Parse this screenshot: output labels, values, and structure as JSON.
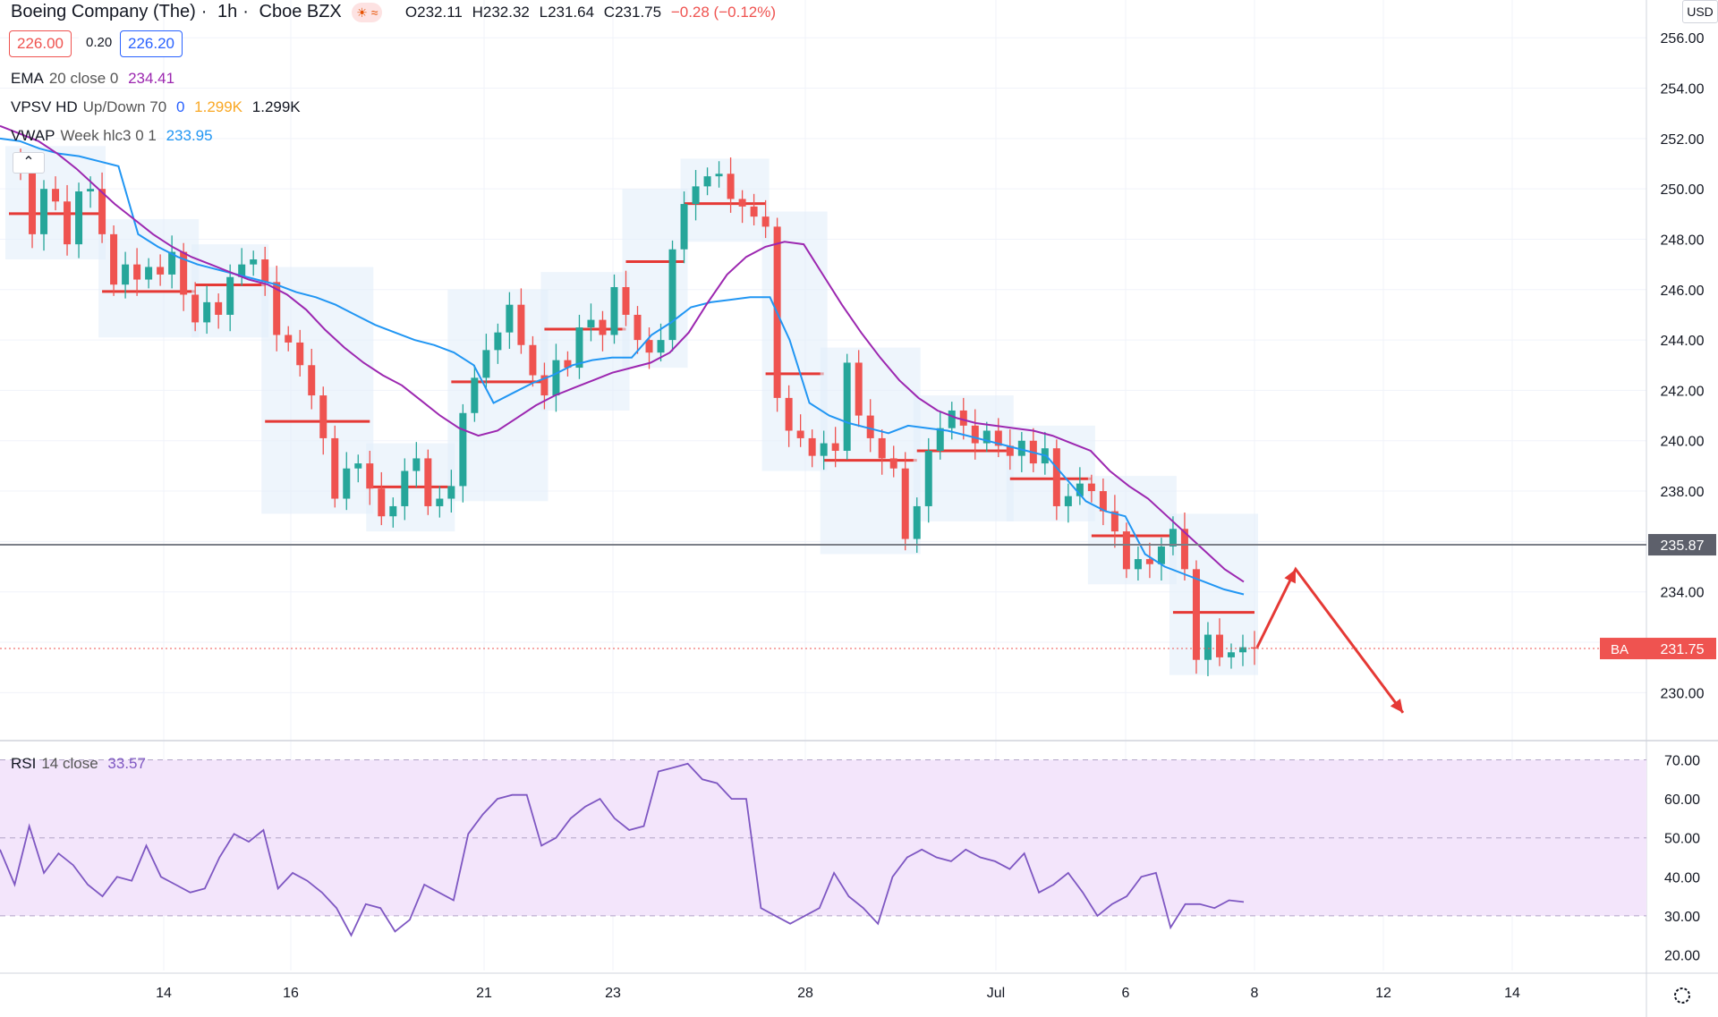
{
  "header": {
    "symbol_name": "Boeing Company (The)",
    "interval": "1h",
    "exchange": "Cboe BZX",
    "ohlc": {
      "o": "O232.11",
      "h": "H232.32",
      "l": "L231.64",
      "c": "C231.75",
      "chg": "−0.28 (−0.12%)"
    },
    "bid": "226.00",
    "spread": "0.20",
    "ask": "226.20",
    "currency": "USD"
  },
  "indicators": {
    "ema": {
      "name": "EMA",
      "params": "20 close 0",
      "value": "234.41",
      "color": "#9c27b0"
    },
    "vpsv": {
      "name": "VPSV HD",
      "params": "Up/Down 70",
      "v1": "0",
      "v2": "1.299K",
      "v3": "1.299K"
    },
    "vwap": {
      "name": "VWAP",
      "params": "Week hlc3 0 1",
      "value": "233.95",
      "color": "#2196f3"
    },
    "rsi": {
      "name": "RSI",
      "params": "14 close",
      "value": "33.57",
      "color": "#7e57c2"
    }
  },
  "chart_data": {
    "type": "candlestick",
    "price_axis": {
      "ticks": [
        "256.00",
        "254.00",
        "252.00",
        "250.00",
        "248.00",
        "246.00",
        "244.00",
        "242.00",
        "240.00",
        "238.00",
        "236.00",
        "234.00",
        "232.00",
        "230.00"
      ],
      "ylim": [
        228.2,
        257.5
      ]
    },
    "rsi_axis": {
      "ticks": [
        "70.00",
        "60.00",
        "50.00",
        "40.00",
        "30.00",
        "20.00"
      ],
      "ylim": [
        16,
        74
      ],
      "overbought": 70,
      "oversold": 30
    },
    "x_labels": [
      "14",
      "16",
      "21",
      "23",
      "28",
      "Jul",
      "6",
      "8",
      "12",
      "14"
    ],
    "horizontal_line": {
      "value": 235.87,
      "label": "235.87"
    },
    "last_price": {
      "symbol": "BA",
      "value": 231.75,
      "label": "231.75"
    },
    "close_path": [
      251.1,
      250.8,
      248.2,
      250.0,
      249.5,
      247.8,
      249.9,
      250.0,
      248.2,
      246.2,
      247.0,
      246.4,
      246.9,
      246.6,
      247.5,
      245.8,
      244.7,
      245.5,
      245.0,
      246.5,
      247.0,
      247.2,
      246.3,
      244.2,
      243.9,
      243.0,
      241.8,
      240.1,
      237.7,
      238.9,
      239.1,
      238.1,
      237.0,
      237.4,
      238.8,
      239.3,
      237.4,
      237.7,
      238.2,
      241.1,
      242.5,
      243.6,
      244.3,
      245.4,
      243.8,
      242.6,
      241.8,
      243.2,
      242.9,
      244.5,
      244.8,
      244.2,
      246.1,
      245.0,
      244.0,
      243.5,
      244.0,
      247.6,
      249.4,
      250.1,
      250.5,
      250.6,
      249.6,
      249.3,
      248.9,
      248.5,
      241.7,
      240.4,
      240.1,
      239.4,
      239.9,
      239.6,
      243.1,
      241.0,
      240.1,
      239.3,
      238.9,
      236.1,
      237.4,
      239.6,
      240.5,
      241.2,
      240.6,
      239.9,
      240.4,
      239.8,
      239.4,
      240.0,
      239.1,
      239.7,
      237.4,
      237.8,
      238.3,
      238.0,
      237.2,
      236.4,
      234.9,
      235.3,
      235.1,
      235.8,
      236.5,
      234.9,
      231.3,
      232.3,
      231.4,
      231.6,
      231.8,
      231.75
    ],
    "ema_path": [
      252.5,
      252.2,
      251.9,
      251.4,
      250.8,
      250.1,
      249.4,
      248.8,
      248.2,
      247.7,
      247.3,
      247.0,
      246.7,
      246.4,
      246.2,
      245.8,
      245.2,
      244.4,
      243.7,
      243.1,
      242.6,
      242.2,
      241.6,
      241.0,
      240.5,
      240.2,
      240.4,
      240.9,
      241.4,
      241.8,
      242.1,
      242.4,
      242.7,
      242.9,
      243.1,
      243.5,
      244.3,
      245.5,
      246.6,
      247.3,
      247.7,
      247.9,
      247.8,
      246.6,
      245.4,
      244.3,
      243.3,
      242.4,
      241.7,
      241.2,
      240.9,
      240.7,
      240.6,
      240.5,
      240.4,
      240.2,
      239.9,
      239.6,
      238.8,
      238.2,
      237.7,
      237.0,
      236.3,
      235.6,
      234.9,
      234.4
    ],
    "vwap_path": [
      252.0,
      251.9,
      251.6,
      251.4,
      251.3,
      251.1,
      250.9,
      248.2,
      247.7,
      247.3,
      247.0,
      246.8,
      246.6,
      246.4,
      246.2,
      245.9,
      245.7,
      245.4,
      245.0,
      244.6,
      244.3,
      244.0,
      243.8,
      243.5,
      243.0,
      241.5,
      241.9,
      242.3,
      242.6,
      243.0,
      243.2,
      243.3,
      243.3,
      244.2,
      244.7,
      245.3,
      245.5,
      245.6,
      245.7,
      245.7,
      244.0,
      241.5,
      241.0,
      240.7,
      240.5,
      240.3,
      240.6,
      240.5,
      240.4,
      240.2,
      240.0,
      239.8,
      239.6,
      239.4,
      238.5,
      237.6,
      237.2,
      237.0,
      235.5,
      235.0,
      234.7,
      234.4,
      234.1,
      233.9
    ],
    "rsi_path": [
      47,
      38,
      53,
      41,
      46,
      43,
      38,
      35,
      40,
      39,
      48,
      40,
      38,
      36,
      37,
      45,
      51,
      49,
      52,
      37,
      41,
      39,
      36,
      32,
      25,
      33,
      32,
      26,
      29,
      38,
      36,
      34,
      51,
      56,
      60,
      61,
      61,
      48,
      50,
      55,
      58,
      60,
      55,
      52,
      53,
      67,
      68,
      69,
      65,
      64,
      60,
      60,
      32,
      30,
      28,
      30,
      32,
      41,
      35,
      32,
      28,
      40,
      45,
      47,
      45,
      44,
      47,
      45,
      44,
      42,
      46,
      36,
      38,
      41,
      36,
      30,
      33,
      35,
      40,
      41,
      27,
      33,
      33,
      32,
      34,
      33.57
    ],
    "arrow": {
      "points": [
        [
          231.8
        ],
        [
          234.9
        ],
        [
          229.2
        ]
      ]
    }
  }
}
